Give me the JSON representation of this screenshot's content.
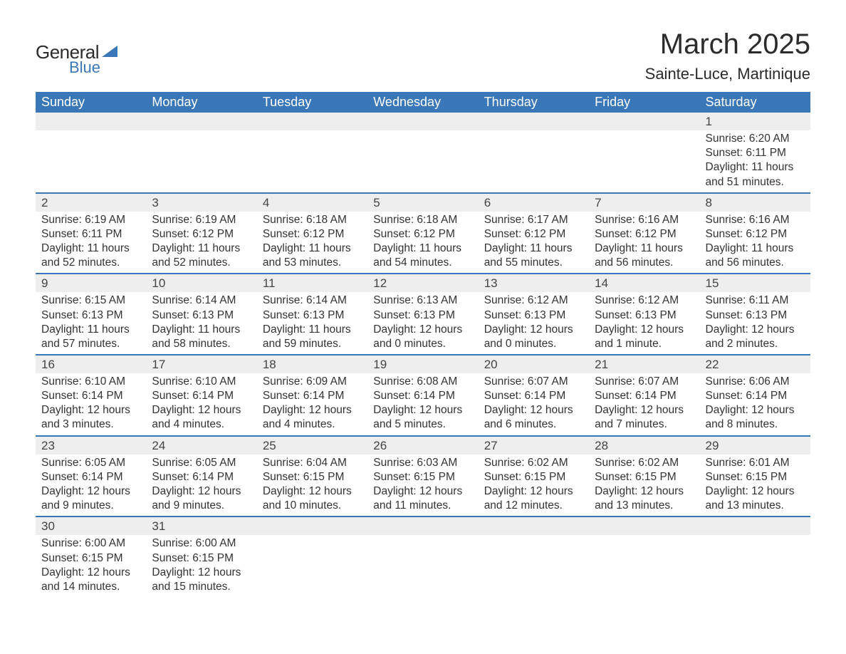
{
  "logo": {
    "general": "General",
    "blue": "Blue",
    "icon_color": "#3a77b8"
  },
  "title": "March 2025",
  "location": "Sainte-Luce, Martinique",
  "colors": {
    "header_bg": "#3a77b8",
    "header_text": "#ffffff",
    "daynum_bg": "#eeeeee",
    "row_divider": "#3a77b8",
    "body_text": "#333333"
  },
  "dow": [
    "Sunday",
    "Monday",
    "Tuesday",
    "Wednesday",
    "Thursday",
    "Friday",
    "Saturday"
  ],
  "weeks": [
    [
      null,
      null,
      null,
      null,
      null,
      null,
      {
        "n": "1",
        "sr": "6:20 AM",
        "ss": "6:11 PM",
        "dl": "11 hours and 51 minutes."
      }
    ],
    [
      {
        "n": "2",
        "sr": "6:19 AM",
        "ss": "6:11 PM",
        "dl": "11 hours and 52 minutes."
      },
      {
        "n": "3",
        "sr": "6:19 AM",
        "ss": "6:12 PM",
        "dl": "11 hours and 52 minutes."
      },
      {
        "n": "4",
        "sr": "6:18 AM",
        "ss": "6:12 PM",
        "dl": "11 hours and 53 minutes."
      },
      {
        "n": "5",
        "sr": "6:18 AM",
        "ss": "6:12 PM",
        "dl": "11 hours and 54 minutes."
      },
      {
        "n": "6",
        "sr": "6:17 AM",
        "ss": "6:12 PM",
        "dl": "11 hours and 55 minutes."
      },
      {
        "n": "7",
        "sr": "6:16 AM",
        "ss": "6:12 PM",
        "dl": "11 hours and 56 minutes."
      },
      {
        "n": "8",
        "sr": "6:16 AM",
        "ss": "6:12 PM",
        "dl": "11 hours and 56 minutes."
      }
    ],
    [
      {
        "n": "9",
        "sr": "6:15 AM",
        "ss": "6:13 PM",
        "dl": "11 hours and 57 minutes."
      },
      {
        "n": "10",
        "sr": "6:14 AM",
        "ss": "6:13 PM",
        "dl": "11 hours and 58 minutes."
      },
      {
        "n": "11",
        "sr": "6:14 AM",
        "ss": "6:13 PM",
        "dl": "11 hours and 59 minutes."
      },
      {
        "n": "12",
        "sr": "6:13 AM",
        "ss": "6:13 PM",
        "dl": "12 hours and 0 minutes."
      },
      {
        "n": "13",
        "sr": "6:12 AM",
        "ss": "6:13 PM",
        "dl": "12 hours and 0 minutes."
      },
      {
        "n": "14",
        "sr": "6:12 AM",
        "ss": "6:13 PM",
        "dl": "12 hours and 1 minute."
      },
      {
        "n": "15",
        "sr": "6:11 AM",
        "ss": "6:13 PM",
        "dl": "12 hours and 2 minutes."
      }
    ],
    [
      {
        "n": "16",
        "sr": "6:10 AM",
        "ss": "6:14 PM",
        "dl": "12 hours and 3 minutes."
      },
      {
        "n": "17",
        "sr": "6:10 AM",
        "ss": "6:14 PM",
        "dl": "12 hours and 4 minutes."
      },
      {
        "n": "18",
        "sr": "6:09 AM",
        "ss": "6:14 PM",
        "dl": "12 hours and 4 minutes."
      },
      {
        "n": "19",
        "sr": "6:08 AM",
        "ss": "6:14 PM",
        "dl": "12 hours and 5 minutes."
      },
      {
        "n": "20",
        "sr": "6:07 AM",
        "ss": "6:14 PM",
        "dl": "12 hours and 6 minutes."
      },
      {
        "n": "21",
        "sr": "6:07 AM",
        "ss": "6:14 PM",
        "dl": "12 hours and 7 minutes."
      },
      {
        "n": "22",
        "sr": "6:06 AM",
        "ss": "6:14 PM",
        "dl": "12 hours and 8 minutes."
      }
    ],
    [
      {
        "n": "23",
        "sr": "6:05 AM",
        "ss": "6:14 PM",
        "dl": "12 hours and 9 minutes."
      },
      {
        "n": "24",
        "sr": "6:05 AM",
        "ss": "6:14 PM",
        "dl": "12 hours and 9 minutes."
      },
      {
        "n": "25",
        "sr": "6:04 AM",
        "ss": "6:15 PM",
        "dl": "12 hours and 10 minutes."
      },
      {
        "n": "26",
        "sr": "6:03 AM",
        "ss": "6:15 PM",
        "dl": "12 hours and 11 minutes."
      },
      {
        "n": "27",
        "sr": "6:02 AM",
        "ss": "6:15 PM",
        "dl": "12 hours and 12 minutes."
      },
      {
        "n": "28",
        "sr": "6:02 AM",
        "ss": "6:15 PM",
        "dl": "12 hours and 13 minutes."
      },
      {
        "n": "29",
        "sr": "6:01 AM",
        "ss": "6:15 PM",
        "dl": "12 hours and 13 minutes."
      }
    ],
    [
      {
        "n": "30",
        "sr": "6:00 AM",
        "ss": "6:15 PM",
        "dl": "12 hours and 14 minutes."
      },
      {
        "n": "31",
        "sr": "6:00 AM",
        "ss": "6:15 PM",
        "dl": "12 hours and 15 minutes."
      },
      null,
      null,
      null,
      null,
      null
    ]
  ],
  "labels": {
    "sunrise": "Sunrise: ",
    "sunset": "Sunset: ",
    "daylight": "Daylight: "
  }
}
